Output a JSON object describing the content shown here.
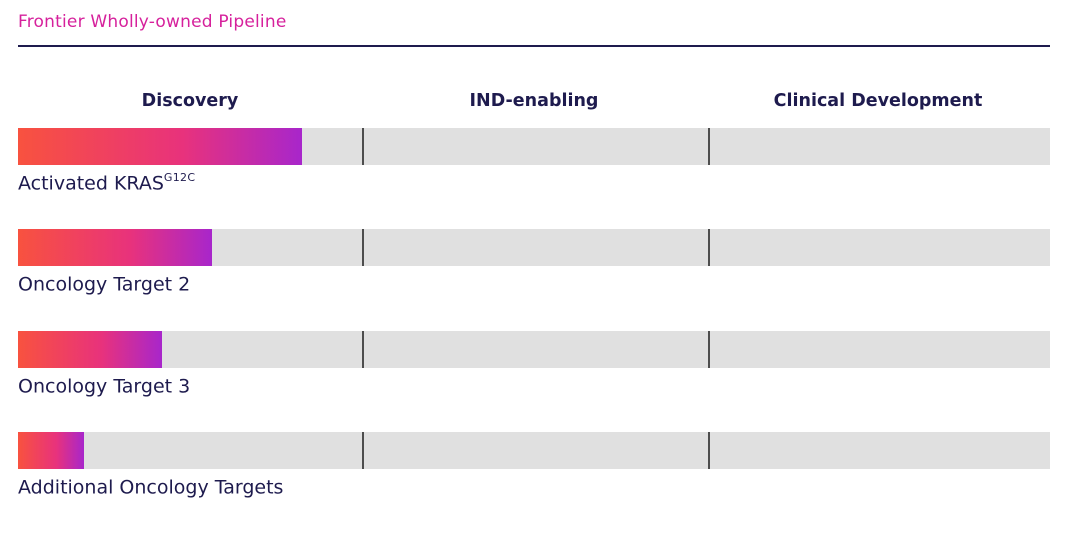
{
  "title": "Frontier Wholly-owned Pipeline",
  "columns": [
    "Discovery",
    "IND-enabling",
    "Clinical Development"
  ],
  "rows": [
    {
      "label": "Activated KRAS",
      "label_sup": "G12C",
      "progress": "27.5%"
    },
    {
      "label": "Oncology Target 2",
      "label_sup": "",
      "progress": "18.8%"
    },
    {
      "label": "Oncology Target 3",
      "label_sup": "",
      "progress": "14%"
    },
    {
      "label": "Additional Oncology Targets",
      "label_sup": "",
      "progress": "6.4%"
    }
  ],
  "colors": {
    "magenta": "#d6219c",
    "navy": "#1e1b4e",
    "track": "#e0e0e0",
    "divider": "#4d4d4d",
    "g1": "#f8523f",
    "g2": "#e8327c",
    "g3": "#a826cb"
  },
  "chart_data": {
    "type": "bar",
    "orientation": "horizontal",
    "title": "Frontier Wholly-owned Pipeline",
    "stages": [
      "Discovery",
      "IND-enabling",
      "Clinical Development"
    ],
    "categories": [
      "Activated KRAS G12C",
      "Oncology Target 2",
      "Oncology Target 3",
      "Additional Oncology Targets"
    ],
    "values_pct_of_full_pipeline": [
      27.5,
      18.8,
      14,
      6.4
    ],
    "stage_reached": [
      "Discovery",
      "Discovery",
      "Discovery",
      "Discovery"
    ],
    "xlim": [
      0,
      100
    ],
    "grid": false,
    "legend": false
  }
}
